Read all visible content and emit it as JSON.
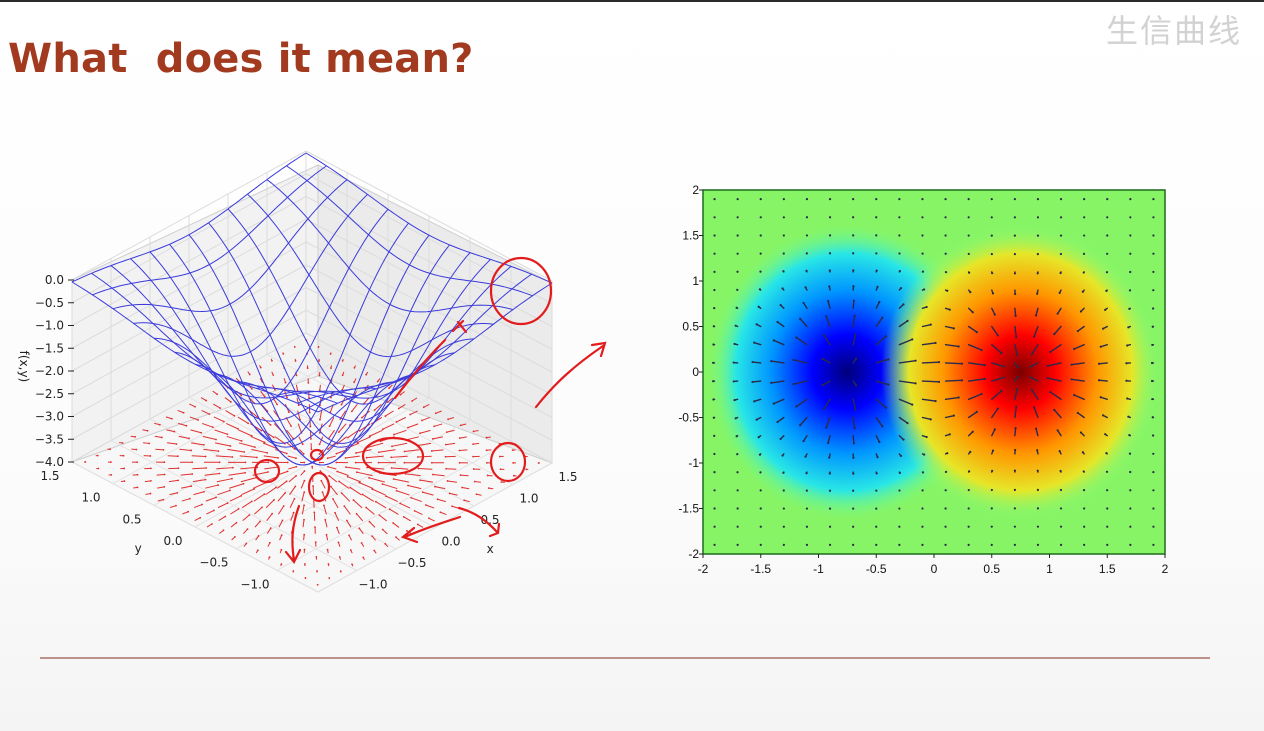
{
  "slide": {
    "title": "What  does it mean?",
    "watermark": "生信曲线"
  },
  "chart_data": [
    {
      "type": "surface3d",
      "function": "f(x,y) = -4·exp(-(x²+y²)) ... gaussian well with gradient vector field on floor",
      "zlabel": "f(x,y)",
      "xlabel": "x",
      "ylabel": "y",
      "z_ticks": [
        "0.0",
        "−0.5",
        "−1.0",
        "−1.5",
        "−2.0",
        "−2.5",
        "−3.0",
        "−3.5",
        "−4.0"
      ],
      "x_ticks": [
        "−1.0",
        "−0.5",
        "0.0",
        "0.5",
        "1.0",
        "1.5"
      ],
      "y_ticks": [
        "−1.0",
        "−0.5",
        "0.0",
        "0.5",
        "1.0",
        "1.5"
      ],
      "zlim": [
        -4.0,
        0.0
      ],
      "xlim": [
        -1.5,
        1.5
      ],
      "ylim": [
        -1.5,
        1.5
      ],
      "surface_color": "#3b3bdc",
      "vector_field_color": "#e03030",
      "annotation_color": "#e21c1c"
    },
    {
      "type": "heatmap",
      "colormap": "jet",
      "field": "gaussian dipole: negative lobe at (-0.75, 0), positive lobe at (0.75, 0), gradient arrows",
      "lobes": [
        {
          "x": -0.75,
          "y": 0,
          "value": -1
        },
        {
          "x": 0.75,
          "y": 0,
          "value": 1
        }
      ],
      "x_ticks": [
        "-2",
        "-1.5",
        "-1",
        "-0.5",
        "0",
        "0.5",
        "1",
        "1.5",
        "2"
      ],
      "y_ticks": [
        "2",
        "1.5",
        "1",
        "0.5",
        "0",
        "-0.5",
        "-1",
        "-1.5",
        "-2"
      ],
      "xlim": [
        -2,
        2
      ],
      "ylim": [
        -2,
        2
      ],
      "arrow_color": "#2a2a4a"
    }
  ]
}
